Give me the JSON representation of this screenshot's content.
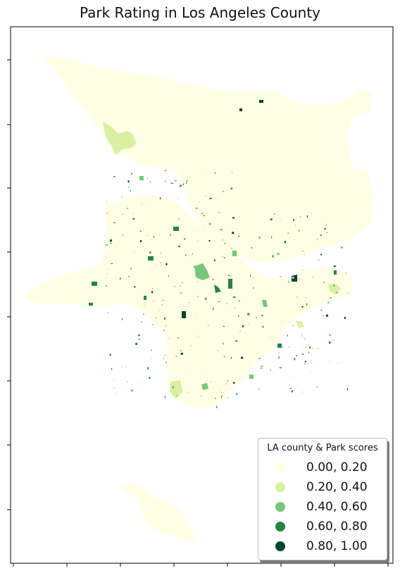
{
  "title": "Park Rating in Los Angeles County",
  "legend": {
    "title": "LA county & Park scores",
    "items": [
      {
        "label": "0.00, 0.20",
        "color": "#ffffe5"
      },
      {
        "label": "0.20, 0.40",
        "color": "#d9f0a3"
      },
      {
        "label": "0.40, 0.60",
        "color": "#78c679"
      },
      {
        "label": "0.60, 0.80",
        "color": "#238443"
      },
      {
        "label": "0.80, 1.00",
        "color": "#004529"
      }
    ]
  },
  "colors": {
    "low": "#ffffe5",
    "light_green": "#d9f0a3",
    "mid_green": "#78c679",
    "green": "#238443",
    "dark_green": "#004529"
  }
}
